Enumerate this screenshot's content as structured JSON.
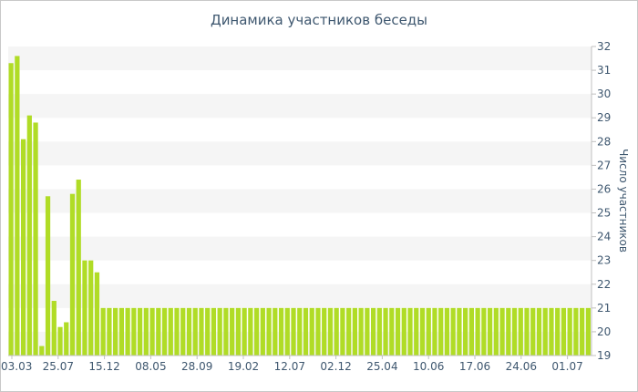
{
  "chart_data": {
    "type": "bar",
    "title": "Динамика участников беседы",
    "ylabel": "Число участников",
    "xlabel": "",
    "ylim": [
      19,
      32
    ],
    "y_ticks": [
      19,
      20,
      21,
      22,
      23,
      24,
      25,
      26,
      27,
      28,
      29,
      30,
      31,
      32
    ],
    "y_axis_side": "right",
    "x_tick_labels": [
      "03.03",
      "25.07",
      "15.12",
      "08.05",
      "28.09",
      "19.02",
      "12.07",
      "02.12",
      "25.04",
      "10.06",
      "17.06",
      "24.06",
      "01.07"
    ],
    "grid": "alternating horizontal bands",
    "colors": {
      "bar": "#b0dc26",
      "band": "#f5f5f5",
      "axis_text": "#3e576f",
      "axis_line": "#c0c0c0"
    },
    "values": [
      31.3,
      31.6,
      28.1,
      29.1,
      28.8,
      19.4,
      25.7,
      21.3,
      20.2,
      20.4,
      25.8,
      26.4,
      23.0,
      23.0,
      22.5,
      21,
      21,
      21,
      21,
      21,
      21,
      21,
      21,
      21,
      21,
      21,
      21,
      21,
      21,
      21,
      21,
      21,
      21,
      21,
      21,
      21,
      21,
      21,
      21,
      21,
      21,
      21,
      21,
      21,
      21,
      21,
      21,
      21,
      21,
      21,
      21,
      21,
      21,
      21,
      21,
      21,
      21,
      21,
      21,
      21,
      21,
      21,
      21,
      21,
      21,
      21,
      21,
      21,
      21,
      21,
      21,
      21,
      21,
      21,
      21,
      21,
      21,
      21,
      21,
      21,
      21,
      21,
      21,
      21,
      21,
      21,
      21,
      21,
      21,
      21,
      21,
      21,
      21,
      21,
      21
    ]
  }
}
